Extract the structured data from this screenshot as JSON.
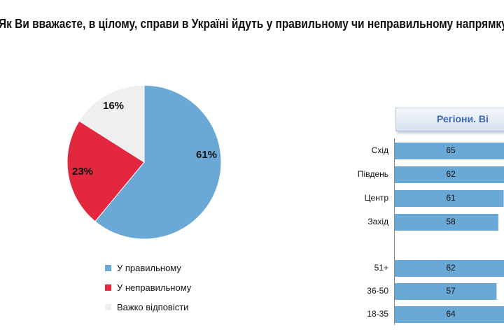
{
  "title": "Як Ви вважаєте, в цілому, справи в Україні йдуть у правильному чи неправильному напрямку?",
  "legend": {
    "items": [
      {
        "label": "У правильному",
        "color": "#6aa8d6"
      },
      {
        "label": "У неправильному",
        "color": "#e3273f"
      },
      {
        "label": "Важко відповісти",
        "color": "#efefef"
      }
    ]
  },
  "bar_panel": {
    "header": "Регіони. Ві"
  },
  "chart_data": [
    {
      "type": "pie",
      "slices": [
        {
          "label": "У правильному",
          "value": 61,
          "display": "61%",
          "color": "#6aa8d6"
        },
        {
          "label": "У неправильному",
          "value": 23,
          "display": "23%",
          "color": "#e3273f"
        },
        {
          "label": "Важко відповісти",
          "value": 16,
          "display": "16%",
          "color": "#efefef"
        }
      ]
    },
    {
      "type": "bar",
      "orientation": "horizontal",
      "categories": [
        "Схід",
        "Південь",
        "Центр",
        "Захід",
        "",
        "51+",
        "36-50",
        "18-35"
      ],
      "series": [
        {
          "values": [
            65,
            62,
            61,
            58,
            null,
            62,
            57,
            64
          ],
          "color": "#6aa8d6"
        }
      ]
    }
  ]
}
